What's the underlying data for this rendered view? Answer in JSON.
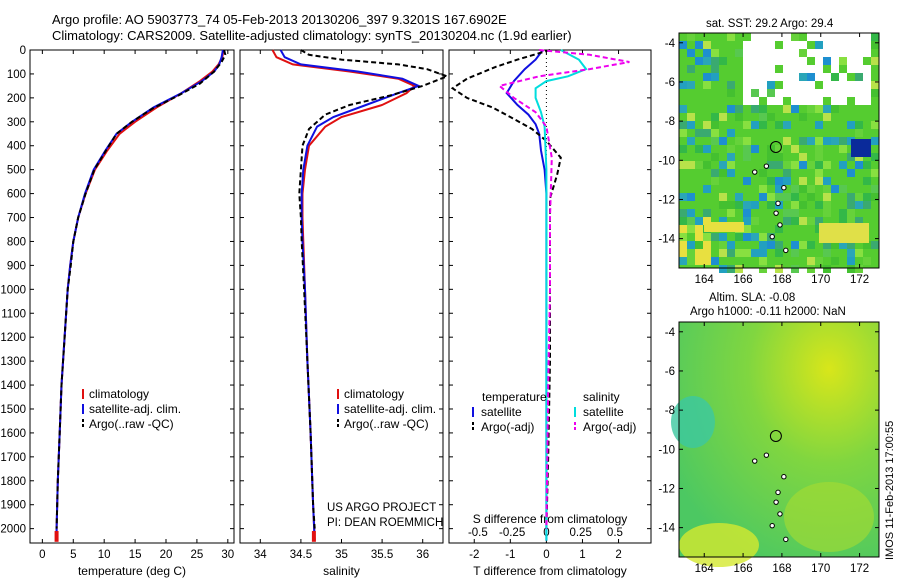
{
  "header": {
    "line1": "Argo profile: AO 5903773_74 05-Feb-2013 20130206_397 9.3201S 167.6902E",
    "line2": "Climatology: CARS2009. Satellite-adjusted climatology: synTS_20130204.nc (1.9d earlier)"
  },
  "sst_title": "sat. SST: 29.2 Argo: 29.4",
  "sla_title1": "Altim. SLA: -0.08",
  "sla_title2": "Argo h1000: -0.11 h2000: NaN",
  "footer_stamp": "IMOS 11-Feb-2013 17:00:55",
  "credit1": "US ARGO PROJECT",
  "credit2": "PI: DEAN ROEMMICH",
  "colors": {
    "clim": "#e01010",
    "sat": "#1010e0",
    "argo": "#000000",
    "sal_sat": "#00dddd",
    "sal_argo": "#ee00ee"
  },
  "chart_data": [
    {
      "type": "line",
      "id": "temperature",
      "xlabel": "temperature (deg C)",
      "ylabel": "",
      "xlim": [
        -2,
        31
      ],
      "ylim": [
        2060,
        0
      ],
      "xticks": [
        "0",
        "5",
        "10",
        "15",
        "20",
        "25",
        "30"
      ],
      "xtick_values": [
        0,
        5,
        10,
        15,
        20,
        25,
        30
      ],
      "yticks": [
        "0",
        "100",
        "200",
        "300",
        "400",
        "500",
        "600",
        "700",
        "800",
        "900",
        "1000",
        "1100",
        "1200",
        "1300",
        "1400",
        "1500",
        "1600",
        "1700",
        "1800",
        "1900",
        "2000"
      ],
      "legend": [
        "climatology",
        "satellite-adj. clim.",
        "Argo(..raw -QC)"
      ],
      "series": [
        {
          "name": "climatology",
          "color_key": "clim",
          "dash": "",
          "points": [
            [
              29.3,
              0
            ],
            [
              29.1,
              30
            ],
            [
              28.5,
              60
            ],
            [
              27.5,
              90
            ],
            [
              25.5,
              130
            ],
            [
              22.5,
              180
            ],
            [
              18.5,
              240
            ],
            [
              15,
              300
            ],
            [
              12.5,
              350
            ],
            [
              10.5,
              420
            ],
            [
              8.5,
              500
            ],
            [
              7,
              600
            ],
            [
              5.8,
              700
            ],
            [
              5,
              800
            ],
            [
              4.5,
              900
            ],
            [
              4.1,
              1000
            ],
            [
              3.6,
              1200
            ],
            [
              3.1,
              1400
            ],
            [
              2.8,
              1600
            ],
            [
              2.5,
              1800
            ],
            [
              2.3,
              2000
            ],
            [
              2.3,
              2050
            ]
          ]
        },
        {
          "name": "satellite-adj. clim.",
          "color_key": "sat",
          "dash": "",
          "points": [
            [
              29.2,
              0
            ],
            [
              29,
              30
            ],
            [
              28.6,
              60
            ],
            [
              27.8,
              90
            ],
            [
              25.8,
              130
            ],
            [
              22.5,
              180
            ],
            [
              18,
              240
            ],
            [
              14.5,
              300
            ],
            [
              12,
              350
            ],
            [
              10.2,
              420
            ],
            [
              8.3,
              500
            ],
            [
              6.9,
              600
            ],
            [
              5.8,
              700
            ],
            [
              5,
              800
            ],
            [
              4.5,
              900
            ],
            [
              4.1,
              1000
            ],
            [
              3.6,
              1200
            ],
            [
              3.1,
              1400
            ],
            [
              2.8,
              1600
            ],
            [
              2.5,
              1800
            ],
            [
              2.3,
              2000
            ],
            [
              2.3,
              2050
            ]
          ]
        },
        {
          "name": "Argo(..raw -QC)",
          "color_key": "argo",
          "dash": "5,3",
          "points": [
            [
              29.4,
              0
            ],
            [
              29.6,
              20
            ],
            [
              29,
              50
            ],
            [
              27.8,
              90
            ],
            [
              25.5,
              140
            ],
            [
              22,
              190
            ],
            [
              17.8,
              245
            ],
            [
              14.5,
              300
            ],
            [
              12,
              350
            ],
            [
              10.3,
              420
            ],
            [
              8.4,
              500
            ],
            [
              7,
              600
            ],
            [
              5.8,
              700
            ],
            [
              5,
              800
            ],
            [
              4.6,
              900
            ],
            [
              4.1,
              1000
            ],
            [
              3.6,
              1200
            ],
            [
              3.1,
              1400
            ],
            [
              2.8,
              1600
            ],
            [
              2.5,
              1800
            ],
            [
              2.3,
              2000
            ]
          ]
        }
      ]
    },
    {
      "type": "line",
      "id": "salinity",
      "xlabel": "salinity",
      "ylabel": "",
      "xlim": [
        33.75,
        36.25
      ],
      "ylim": [
        2060,
        0
      ],
      "xticks": [
        "34",
        "34.5",
        "35",
        "35.5",
        "36"
      ],
      "xtick_values": [
        34,
        34.5,
        35,
        35.5,
        36
      ],
      "legend": [
        "climatology",
        "satellite-adj. clim.",
        "Argo(..raw -QC)"
      ],
      "series": [
        {
          "name": "climatology",
          "color_key": "clim",
          "dash": "",
          "points": [
            [
              34.15,
              0
            ],
            [
              34.2,
              30
            ],
            [
              34.4,
              60
            ],
            [
              35.1,
              90
            ],
            [
              35.7,
              120
            ],
            [
              35.9,
              150
            ],
            [
              35.8,
              180
            ],
            [
              35.5,
              230
            ],
            [
              35.0,
              280
            ],
            [
              34.8,
              320
            ],
            [
              34.6,
              400
            ],
            [
              34.55,
              500
            ],
            [
              34.52,
              600
            ],
            [
              34.52,
              700
            ],
            [
              34.53,
              800
            ],
            [
              34.55,
              1000
            ],
            [
              34.58,
              1300
            ],
            [
              34.62,
              1600
            ],
            [
              34.65,
              1900
            ],
            [
              34.67,
              2050
            ]
          ]
        },
        {
          "name": "satellite-adj. clim.",
          "color_key": "sat",
          "dash": "",
          "points": [
            [
              34.25,
              0
            ],
            [
              34.3,
              30
            ],
            [
              34.5,
              60
            ],
            [
              35.2,
              90
            ],
            [
              35.75,
              120
            ],
            [
              35.95,
              150
            ],
            [
              35.7,
              180
            ],
            [
              35.3,
              230
            ],
            [
              34.9,
              280
            ],
            [
              34.7,
              320
            ],
            [
              34.58,
              400
            ],
            [
              34.53,
              500
            ],
            [
              34.51,
              600
            ],
            [
              34.51,
              700
            ],
            [
              34.52,
              800
            ],
            [
              34.55,
              1000
            ],
            [
              34.58,
              1300
            ],
            [
              34.62,
              1600
            ],
            [
              34.65,
              1900
            ],
            [
              34.67,
              2050
            ]
          ]
        },
        {
          "name": "Argo(..raw -QC)",
          "color_key": "argo",
          "dash": "5,3",
          "points": [
            [
              34.5,
              0
            ],
            [
              34.6,
              20
            ],
            [
              35,
              40
            ],
            [
              35.7,
              60
            ],
            [
              36.05,
              80
            ],
            [
              36.3,
              110
            ],
            [
              36.0,
              150
            ],
            [
              35.6,
              190
            ],
            [
              35.1,
              230
            ],
            [
              34.8,
              270
            ],
            [
              34.6,
              330
            ],
            [
              34.52,
              400
            ],
            [
              34.5,
              500
            ],
            [
              34.48,
              600
            ],
            [
              34.5,
              700
            ],
            [
              34.51,
              800
            ],
            [
              34.54,
              1000
            ],
            [
              34.58,
              1300
            ],
            [
              34.62,
              1600
            ],
            [
              34.65,
              1900
            ],
            [
              34.67,
              2000
            ]
          ]
        }
      ]
    },
    {
      "type": "line",
      "id": "differences",
      "xlabel": "T difference from climatology",
      "xlabel_top": "S difference from climatology",
      "xlim": [
        -2.7,
        2.9
      ],
      "ylim": [
        2060,
        0
      ],
      "xticks": [
        "-2",
        "-1",
        "0",
        "1",
        "2"
      ],
      "xtick_values": [
        -2,
        -1,
        0,
        1,
        2
      ],
      "sticks": [
        "-0.5",
        "-0.25",
        "0",
        "0.25",
        "0.5"
      ],
      "stick_values": [
        -1.9,
        -0.95,
        0,
        0.95,
        1.9
      ],
      "legend": [
        "temperature",
        "salinity",
        "satellite",
        "satellite",
        "Argo(-adj)",
        "Argo(-adj)"
      ],
      "series": [
        {
          "name": "T satellite",
          "color_key": "sat",
          "dash": "",
          "points": [
            [
              -0.1,
              0
            ],
            [
              -0.3,
              40
            ],
            [
              -0.6,
              80
            ],
            [
              -0.9,
              130
            ],
            [
              -1.1,
              180
            ],
            [
              -0.8,
              230
            ],
            [
              -0.5,
              270
            ],
            [
              -0.3,
              310
            ],
            [
              -0.2,
              350
            ],
            [
              -0.15,
              420
            ],
            [
              -0.05,
              500
            ],
            [
              0,
              600
            ],
            [
              0,
              800
            ],
            [
              0,
              1200
            ],
            [
              0,
              1600
            ],
            [
              0,
              2050
            ]
          ]
        },
        {
          "name": "T Argo",
          "color_key": "argo",
          "dash": "5,3",
          "points": [
            [
              0.1,
              0
            ],
            [
              -0.8,
              40
            ],
            [
              -1.4,
              70
            ],
            [
              -2.2,
              120
            ],
            [
              -2.6,
              160
            ],
            [
              -2.2,
              200
            ],
            [
              -1.5,
              240
            ],
            [
              -1,
              280
            ],
            [
              -0.4,
              330
            ],
            [
              0,
              380
            ],
            [
              0.4,
              450
            ],
            [
              0.3,
              520
            ],
            [
              0.1,
              620
            ],
            [
              0.1,
              900
            ],
            [
              0.1,
              1300
            ],
            [
              0.05,
              1700
            ],
            [
              0,
              2000
            ]
          ]
        },
        {
          "name": "S satellite",
          "color_key": "sal_sat",
          "dash": "",
          "points": [
            [
              0.4,
              0
            ],
            [
              0.9,
              40
            ],
            [
              1.1,
              80
            ],
            [
              0.6,
              110
            ],
            [
              0,
              130
            ],
            [
              -0.3,
              160
            ],
            [
              -0.3,
              200
            ],
            [
              -0.15,
              260
            ],
            [
              -0.05,
              320
            ],
            [
              0,
              500
            ],
            [
              0,
              2050
            ]
          ]
        },
        {
          "name": "S Argo",
          "color_key": "sal_argo",
          "dash": "5,3",
          "points": [
            [
              -0.2,
              0
            ],
            [
              1.2,
              20
            ],
            [
              2.3,
              50
            ],
            [
              1.2,
              80
            ],
            [
              -0.2,
              110
            ],
            [
              -1.3,
              150
            ],
            [
              -0.9,
              200
            ],
            [
              -0.3,
              260
            ],
            [
              0,
              320
            ],
            [
              0.15,
              450
            ],
            [
              0.1,
              700
            ],
            [
              0.1,
              1000
            ],
            [
              0.05,
              1400
            ],
            [
              0,
              2000
            ]
          ]
        }
      ]
    },
    {
      "type": "heatmap",
      "id": "sst",
      "title": "sat. SST: 29.2 Argo: 29.4",
      "xlim": [
        162.7,
        173
      ],
      "ylim": [
        -15.5,
        -3.5
      ],
      "xticks": [
        "164",
        "166",
        "168",
        "170",
        "172"
      ],
      "xtick_values": [
        164,
        166,
        168,
        170,
        172
      ],
      "yticks": [
        "-4",
        "-6",
        "-8",
        "-10",
        "-12",
        "-14"
      ],
      "ytick_values": [
        -4,
        -6,
        -8,
        -10,
        -12,
        -14
      ],
      "marker": [
        167.69,
        -9.32
      ]
    },
    {
      "type": "heatmap",
      "id": "sla",
      "title": "Altim. SLA: -0.08 / Argo h1000: -0.11 h2000: NaN",
      "xlim": [
        162.7,
        173
      ],
      "ylim": [
        -15.5,
        -3.5
      ],
      "xticks": [
        "164",
        "166",
        "168",
        "170",
        "172"
      ],
      "xtick_values": [
        164,
        166,
        168,
        170,
        172
      ],
      "yticks": [
        "-4",
        "-6",
        "-8",
        "-10",
        "-12",
        "-14"
      ],
      "ytick_values": [
        -4,
        -6,
        -8,
        -10,
        -12,
        -14
      ],
      "marker": [
        167.69,
        -9.32
      ]
    }
  ]
}
